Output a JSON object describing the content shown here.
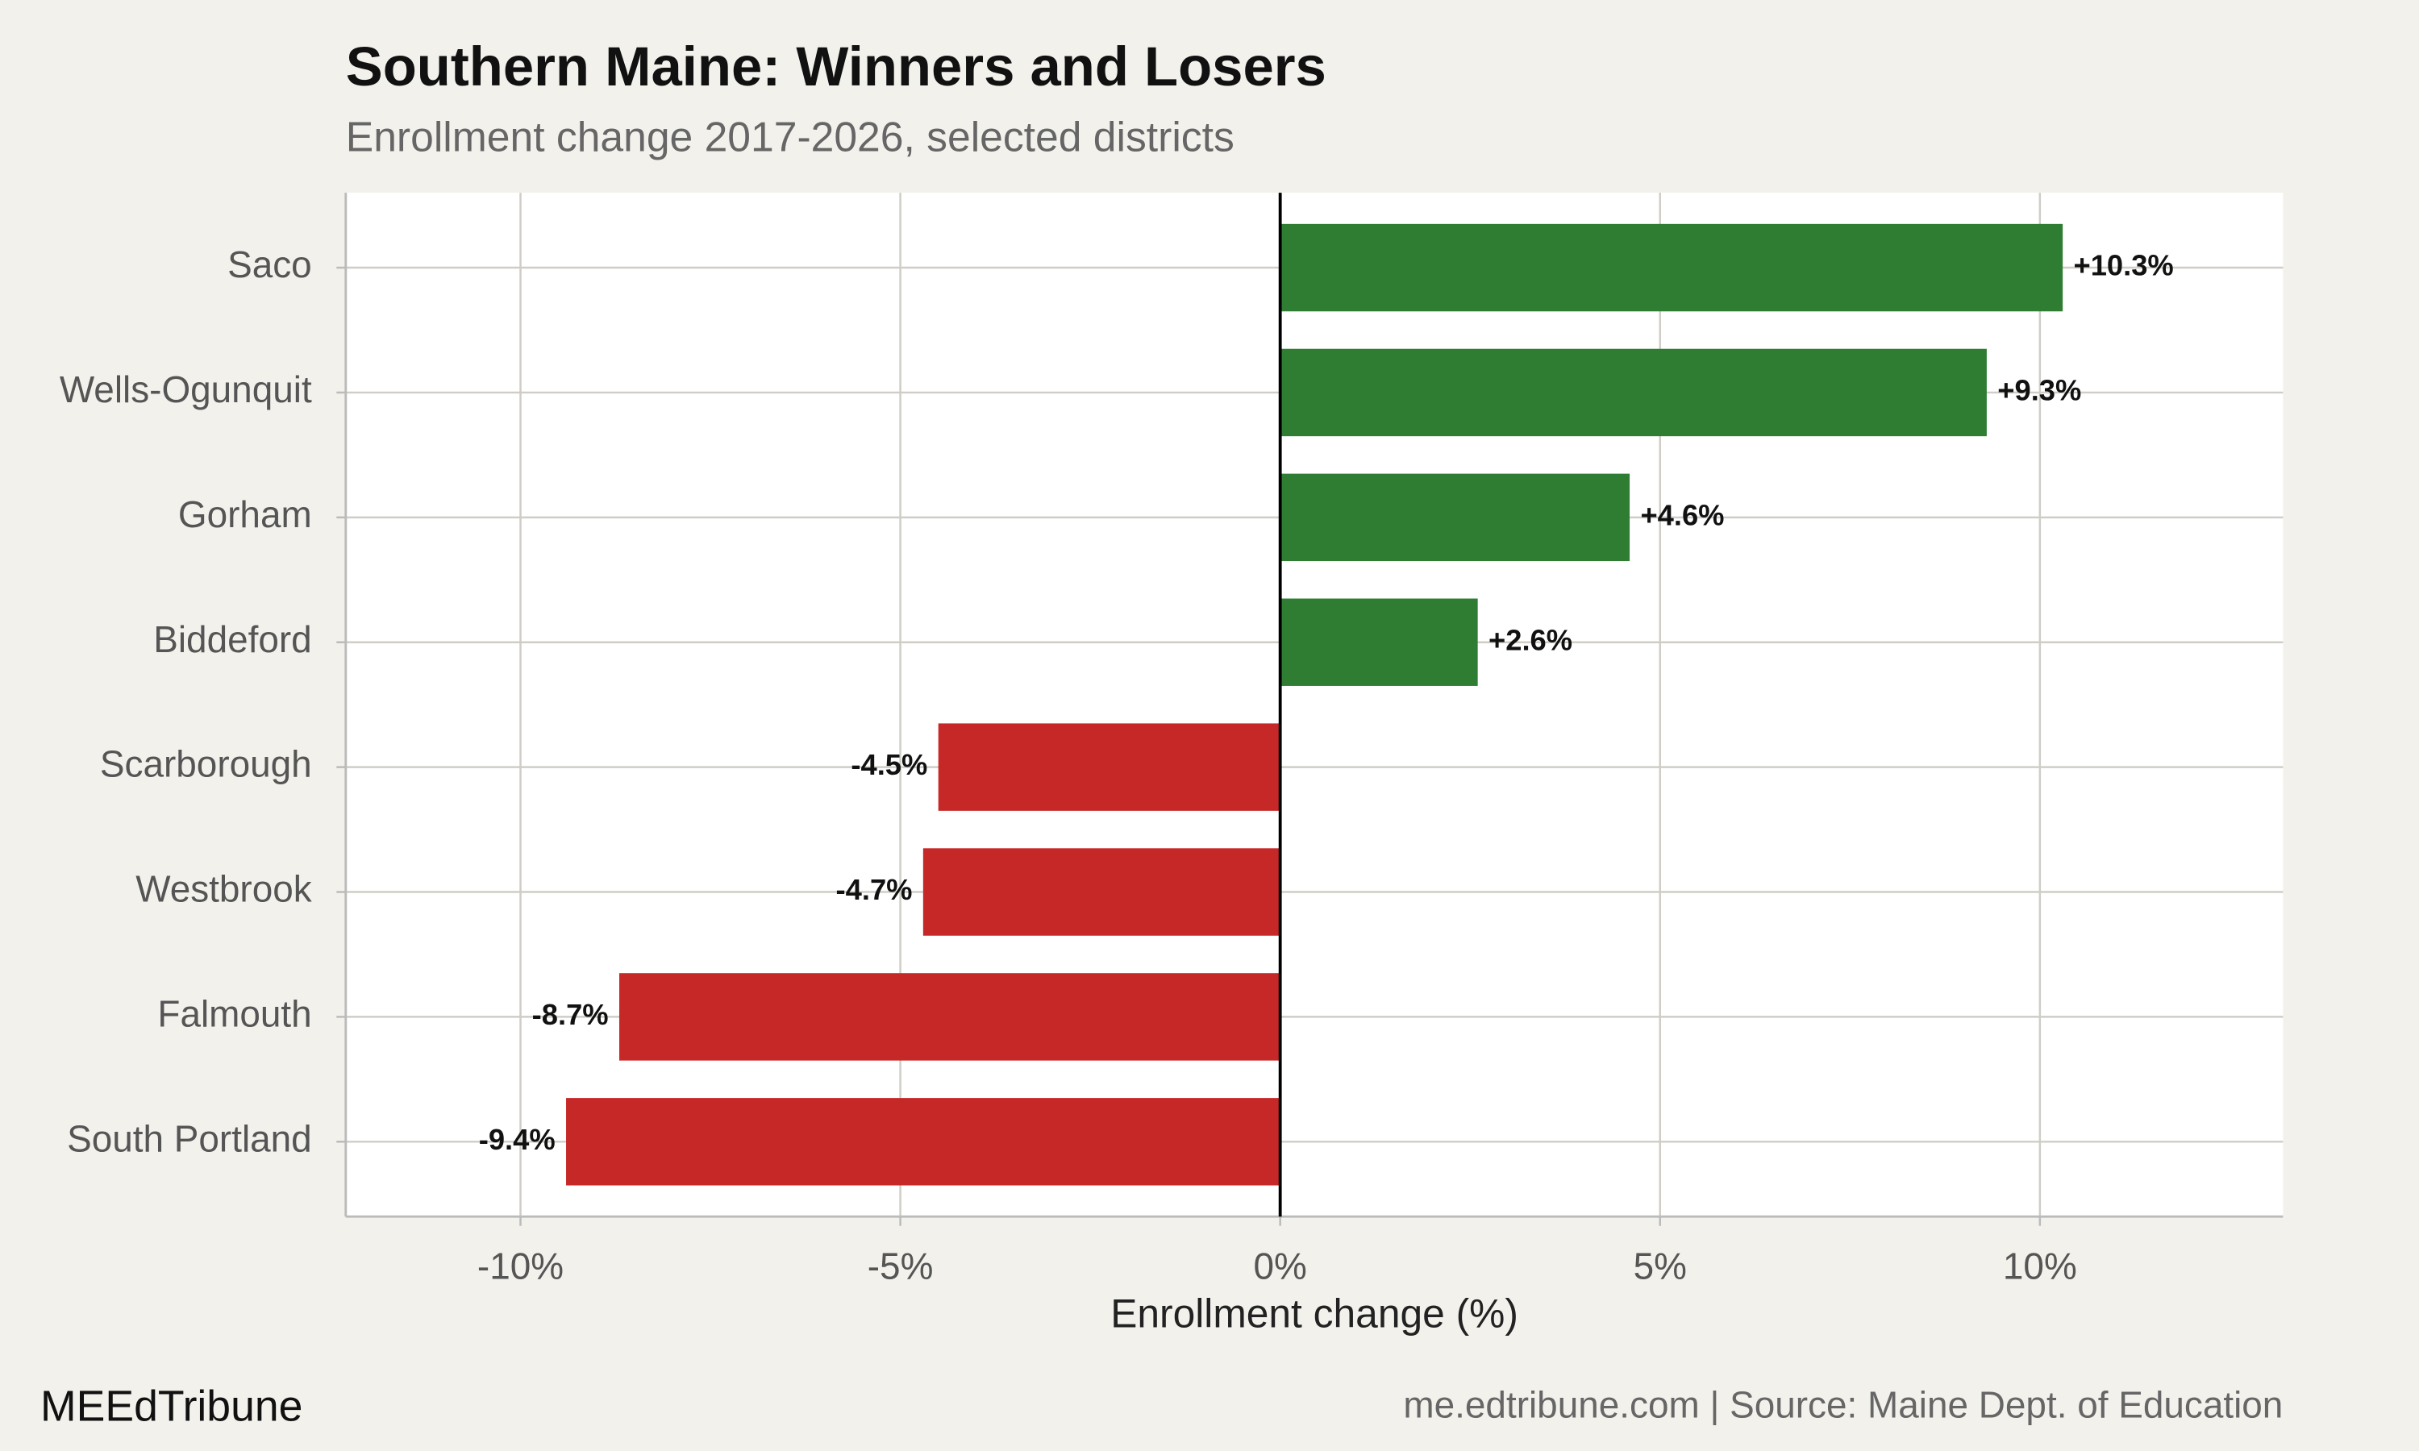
{
  "chart_data": {
    "type": "bar",
    "orientation": "horizontal",
    "title": "Southern Maine: Winners and Losers",
    "subtitle": "Enrollment change 2017-2026, selected districts",
    "x_label": "Enrollment change (%)",
    "categories": [
      "Saco",
      "Wells-Ogunquit",
      "Gorham",
      "Biddeford",
      "Scarborough",
      "Westbrook",
      "Falmouth",
      "South Portland"
    ],
    "values": [
      10.3,
      9.3,
      4.6,
      2.6,
      -4.5,
      -4.7,
      -8.7,
      -9.4
    ],
    "value_labels": [
      "+10.3%",
      "+9.3%",
      "+4.6%",
      "+2.6%",
      "-4.5%",
      "-4.7%",
      "-8.7%",
      "-9.4%"
    ],
    "colors": [
      "#2e7d32",
      "#2e7d32",
      "#2e7d32",
      "#2e7d32",
      "#c62828",
      "#c62828",
      "#c62828",
      "#c62828"
    ],
    "xlim": [
      -12.3,
      13.2
    ],
    "xticks": [
      {
        "value": -10,
        "label": "-10%"
      },
      {
        "value": -5,
        "label": "-5%"
      },
      {
        "value": 0,
        "label": "0%"
      },
      {
        "value": 5,
        "label": "5%"
      },
      {
        "value": 10,
        "label": "10%"
      }
    ],
    "grid": true,
    "brand": "MEEdTribune",
    "source": "me.edtribune.com | Source: Maine Dept. of Education"
  }
}
